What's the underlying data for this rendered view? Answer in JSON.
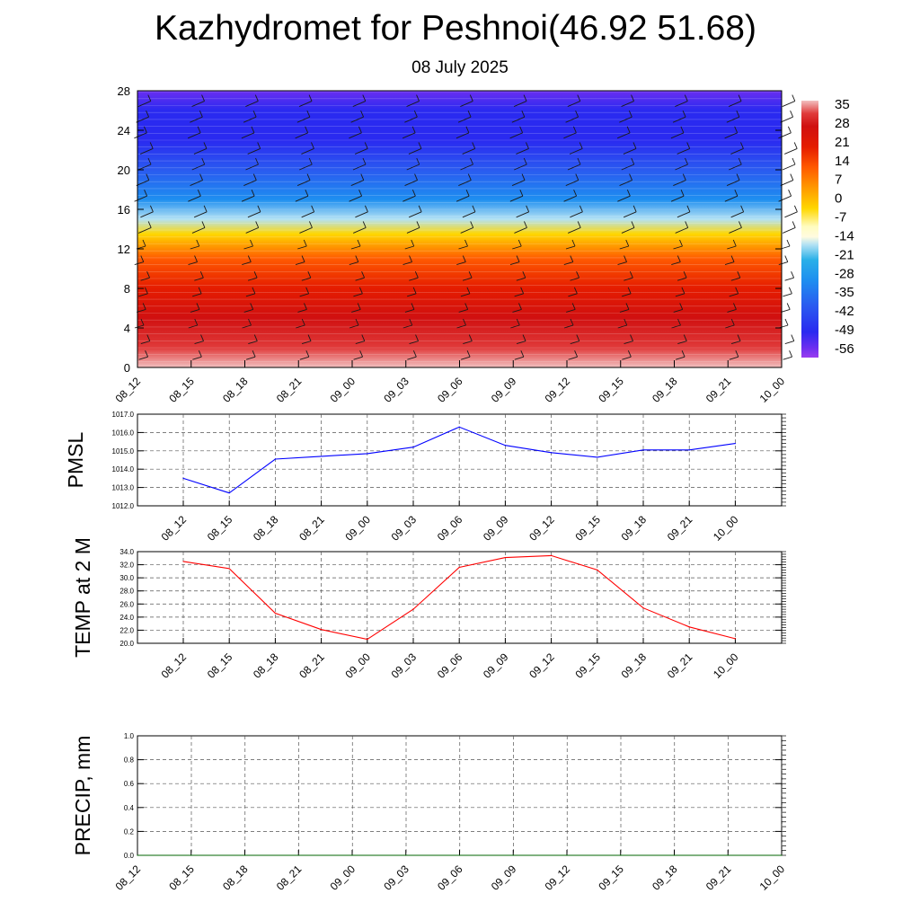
{
  "title": "Kazhydromet for Peshnoi(46.92 51.68)",
  "subtitle": "08 July 2025",
  "chart_data": [
    {
      "type": "heatmap",
      "y": [
        0,
        4,
        8,
        12,
        16,
        20,
        24,
        28
      ],
      "x_tick_labels": [
        "08_12",
        "08_15",
        "08_18",
        "08_21",
        "09_00",
        "09_03",
        "09_06",
        "09_09",
        "09_12",
        "09_15",
        "09_18",
        "09_21",
        "10_00"
      ],
      "y_tick_labels": [
        "0",
        "4",
        "8",
        "12",
        "16",
        "20",
        "24",
        "28"
      ],
      "ylim": [
        0,
        28
      ],
      "colorbar_labels": [
        "35",
        "28",
        "21",
        "14",
        "7",
        "0",
        "-7",
        "-14",
        "-21",
        "-28",
        "-35",
        "-42",
        "-49",
        "-56"
      ],
      "colorbar_range": [
        -60,
        40
      ],
      "temperature_profile": [
        {
          "level": 0,
          "value": 36
        },
        {
          "level": 2,
          "value": 30
        },
        {
          "level": 5,
          "value": 24
        },
        {
          "level": 8,
          "value": 16
        },
        {
          "level": 11,
          "value": 6
        },
        {
          "level": 13.5,
          "value": -8
        },
        {
          "level": 15,
          "value": -20
        },
        {
          "level": 17,
          "value": -32
        },
        {
          "level": 20,
          "value": -46
        },
        {
          "level": 23,
          "value": -52
        },
        {
          "level": 26,
          "value": -56
        },
        {
          "level": 28,
          "value": -58
        }
      ]
    },
    {
      "type": "line",
      "ylabel": "PMSL",
      "categories": [
        "08_12",
        "08_15",
        "08_18",
        "08_21",
        "09_00",
        "09_03",
        "09_06",
        "09_09",
        "09_12",
        "09_15",
        "09_18",
        "09_21",
        "10_00"
      ],
      "series": [
        {
          "values": [
            1013.5,
            1012.7,
            1014.55,
            1014.7,
            1014.85,
            1015.2,
            1016.3,
            1015.3,
            1014.9,
            1014.65,
            1015.05,
            1015.05,
            1015.4
          ],
          "color": "#0000ff"
        }
      ],
      "ylim": [
        1012.0,
        1017.0
      ],
      "y_tick_labels": [
        "1012.0",
        "1013.0",
        "1014.0",
        "1015.0",
        "1016.0",
        "1017.0"
      ],
      "grid": true
    },
    {
      "type": "line",
      "ylabel": "TEMP at 2 M",
      "categories": [
        "08_12",
        "08_15",
        "08_18",
        "08_21",
        "09_00",
        "09_03",
        "09_06",
        "09_09",
        "09_12",
        "09_15",
        "09_18",
        "09_21",
        "10_00"
      ],
      "series": [
        {
          "values": [
            32.5,
            31.4,
            24.6,
            22.1,
            20.6,
            25.2,
            31.6,
            33.1,
            33.4,
            31.2,
            25.4,
            22.5,
            20.7
          ],
          "color": "#ff0000"
        }
      ],
      "ylim": [
        20.0,
        34.0
      ],
      "y_tick_labels": [
        "20.0",
        "22.0",
        "24.0",
        "26.0",
        "28.0",
        "30.0",
        "32.0",
        "34.0"
      ],
      "grid": true
    },
    {
      "type": "line",
      "ylabel": "PRECIP, mm",
      "categories": [
        "08_12",
        "08_15",
        "08_18",
        "08_21",
        "09_00",
        "09_03",
        "09_06",
        "09_09",
        "09_12",
        "09_15",
        "09_18",
        "09_21",
        "10_00"
      ],
      "series": [
        {
          "values": [
            0,
            0,
            0,
            0,
            0,
            0,
            0,
            0,
            0,
            0,
            0,
            0,
            0
          ],
          "color": "#006400"
        }
      ],
      "ylim": [
        0.0,
        1.0
      ],
      "y_tick_labels": [
        "0.0",
        "0.2",
        "0.4",
        "0.6",
        "0.8",
        "1.0"
      ],
      "grid": true
    }
  ]
}
